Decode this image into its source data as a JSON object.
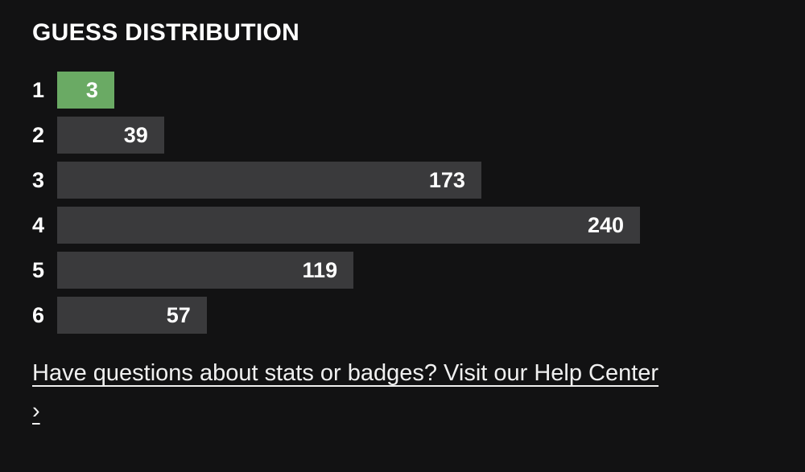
{
  "title": "GUESS DISTRIBUTION",
  "chart_data": {
    "type": "bar",
    "orientation": "horizontal",
    "title": "GUESS DISTRIBUTION",
    "categories": [
      "1",
      "2",
      "3",
      "4",
      "5",
      "6"
    ],
    "values": [
      3,
      39,
      173,
      240,
      119,
      57
    ],
    "highlighted_index": 0,
    "xlim": [
      0,
      240
    ],
    "grid": false,
    "legend": false
  },
  "colors": {
    "background": "#121213",
    "bar": "#3a3a3c",
    "bar_highlight": "#6aaa64",
    "text": "#ffffff",
    "link": "#f0f0f0"
  },
  "footer": {
    "link_text": "Have questions about stats or badges? Visit our Help Center",
    "link_chevron": "›"
  }
}
